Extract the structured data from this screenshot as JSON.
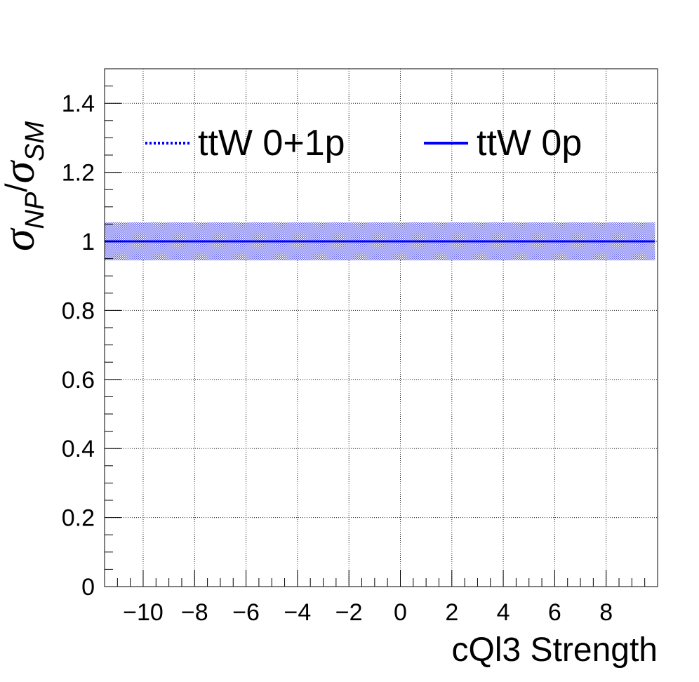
{
  "chart_data": {
    "type": "line",
    "title": "",
    "xlabel": "cQl3 Strength",
    "ylabel": {
      "main": "σ",
      "sub_np": "NP",
      "slash": "/",
      "main2": "σ",
      "sub_sm": "SM"
    },
    "xlim": [
      -11.5,
      10
    ],
    "ylim": [
      0,
      1.5
    ],
    "x_ticks": [
      -10,
      -8,
      -6,
      -4,
      -2,
      0,
      2,
      4,
      6,
      8
    ],
    "x_tick_labels": [
      "−10",
      "−8",
      "−6",
      "−4",
      "−2",
      "0",
      "2",
      "4",
      "6",
      "8"
    ],
    "y_ticks": [
      0,
      0.2,
      0.4,
      0.6,
      0.8,
      1,
      1.2,
      1.4
    ],
    "y_tick_labels": [
      "0",
      "0.2",
      "0.4",
      "0.6",
      "0.8",
      "1",
      "1.2",
      "1.4"
    ],
    "grid": true,
    "legend_position": "top",
    "series": [
      {
        "name": "ttW 0+1p",
        "style": "dotted",
        "color": "#0000ff",
        "x": [
          -11.5,
          9.9
        ],
        "y": [
          1.0,
          1.0
        ],
        "band": {
          "low": 0.945,
          "high": 1.055
        }
      },
      {
        "name": "ttW 0p",
        "style": "solid",
        "color": "#0000ff",
        "x": [
          -11.5,
          9.9
        ],
        "y": [
          1.0,
          1.0
        ]
      }
    ]
  }
}
